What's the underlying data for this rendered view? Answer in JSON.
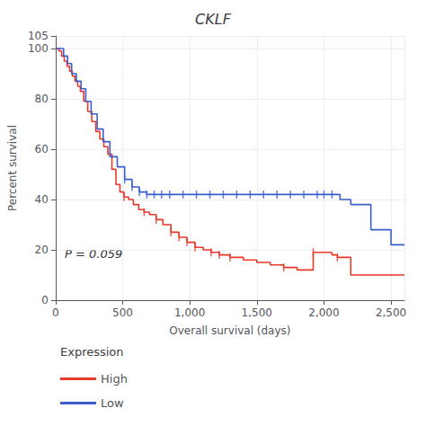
{
  "chart_data": {
    "type": "step",
    "title": "CKLF",
    "xlabel": "Overall survival (days)",
    "ylabel": "Percent survival",
    "annotation": "P = 0.059",
    "xlim": [
      0,
      2600
    ],
    "xticks": [
      0,
      500,
      1000,
      1500,
      2000,
      2500
    ],
    "ylim": [
      0,
      105
    ],
    "yticks": [
      0,
      20,
      40,
      60,
      80,
      100
    ],
    "grid": true,
    "legend": "bottom",
    "legend_title": "Expression",
    "series": [
      {
        "name": "High",
        "color": "#e8392a",
        "marker": "tick",
        "x": [
          0,
          25,
          45,
          65,
          85,
          105,
          125,
          145,
          165,
          185,
          210,
          240,
          270,
          300,
          330,
          360,
          390,
          420,
          450,
          480,
          510,
          545,
          580,
          620,
          660,
          700,
          750,
          800,
          860,
          920,
          980,
          1040,
          1100,
          1160,
          1220,
          1300,
          1400,
          1500,
          1600,
          1700,
          1800,
          1920,
          2000,
          2060,
          2100,
          2200,
          2600
        ],
        "values": [
          100,
          99,
          97,
          95,
          93,
          91,
          89,
          87,
          85,
          83,
          79,
          75,
          71,
          67,
          64,
          61,
          58,
          52,
          46,
          43,
          41,
          40,
          38,
          36,
          35,
          34,
          32,
          30,
          27,
          25,
          23,
          21,
          20,
          19,
          18,
          17,
          16,
          15,
          14,
          13,
          12,
          19,
          19,
          18,
          17,
          10,
          10
        ],
        "censor_x": [
          510,
          660,
          750,
          860,
          920,
          980,
          1040,
          1160,
          1220,
          1300,
          1700,
          1920,
          2100
        ],
        "censor_values": [
          41,
          35,
          32,
          27,
          25,
          23,
          21,
          19,
          18,
          17,
          13,
          19,
          17
        ]
      },
      {
        "name": "Low",
        "color": "#3a5fcd",
        "marker": "tick",
        "x": [
          0,
          35,
          60,
          90,
          120,
          155,
          190,
          225,
          265,
          310,
          355,
          405,
          460,
          515,
          570,
          625,
          680,
          735,
          790,
          2000,
          2060,
          2120,
          2200,
          2350,
          2500,
          2600
        ],
        "values": [
          100,
          100,
          97,
          94,
          90,
          87,
          84,
          79,
          74,
          68,
          63,
          57,
          53,
          48,
          45,
          43,
          42,
          42,
          42,
          42,
          42,
          40,
          38,
          28,
          22,
          22
        ],
        "censor_x": [
          515,
          570,
          625,
          680,
          735,
          790,
          850,
          950,
          1050,
          1150,
          1250,
          1350,
          1450,
          1550,
          1650,
          1750,
          1850,
          1950,
          2000,
          2060
        ],
        "censor_values": [
          48,
          45,
          43,
          42,
          42,
          42,
          42,
          42,
          42,
          42,
          42,
          42,
          42,
          42,
          42,
          42,
          42,
          42,
          42,
          42
        ]
      }
    ]
  }
}
